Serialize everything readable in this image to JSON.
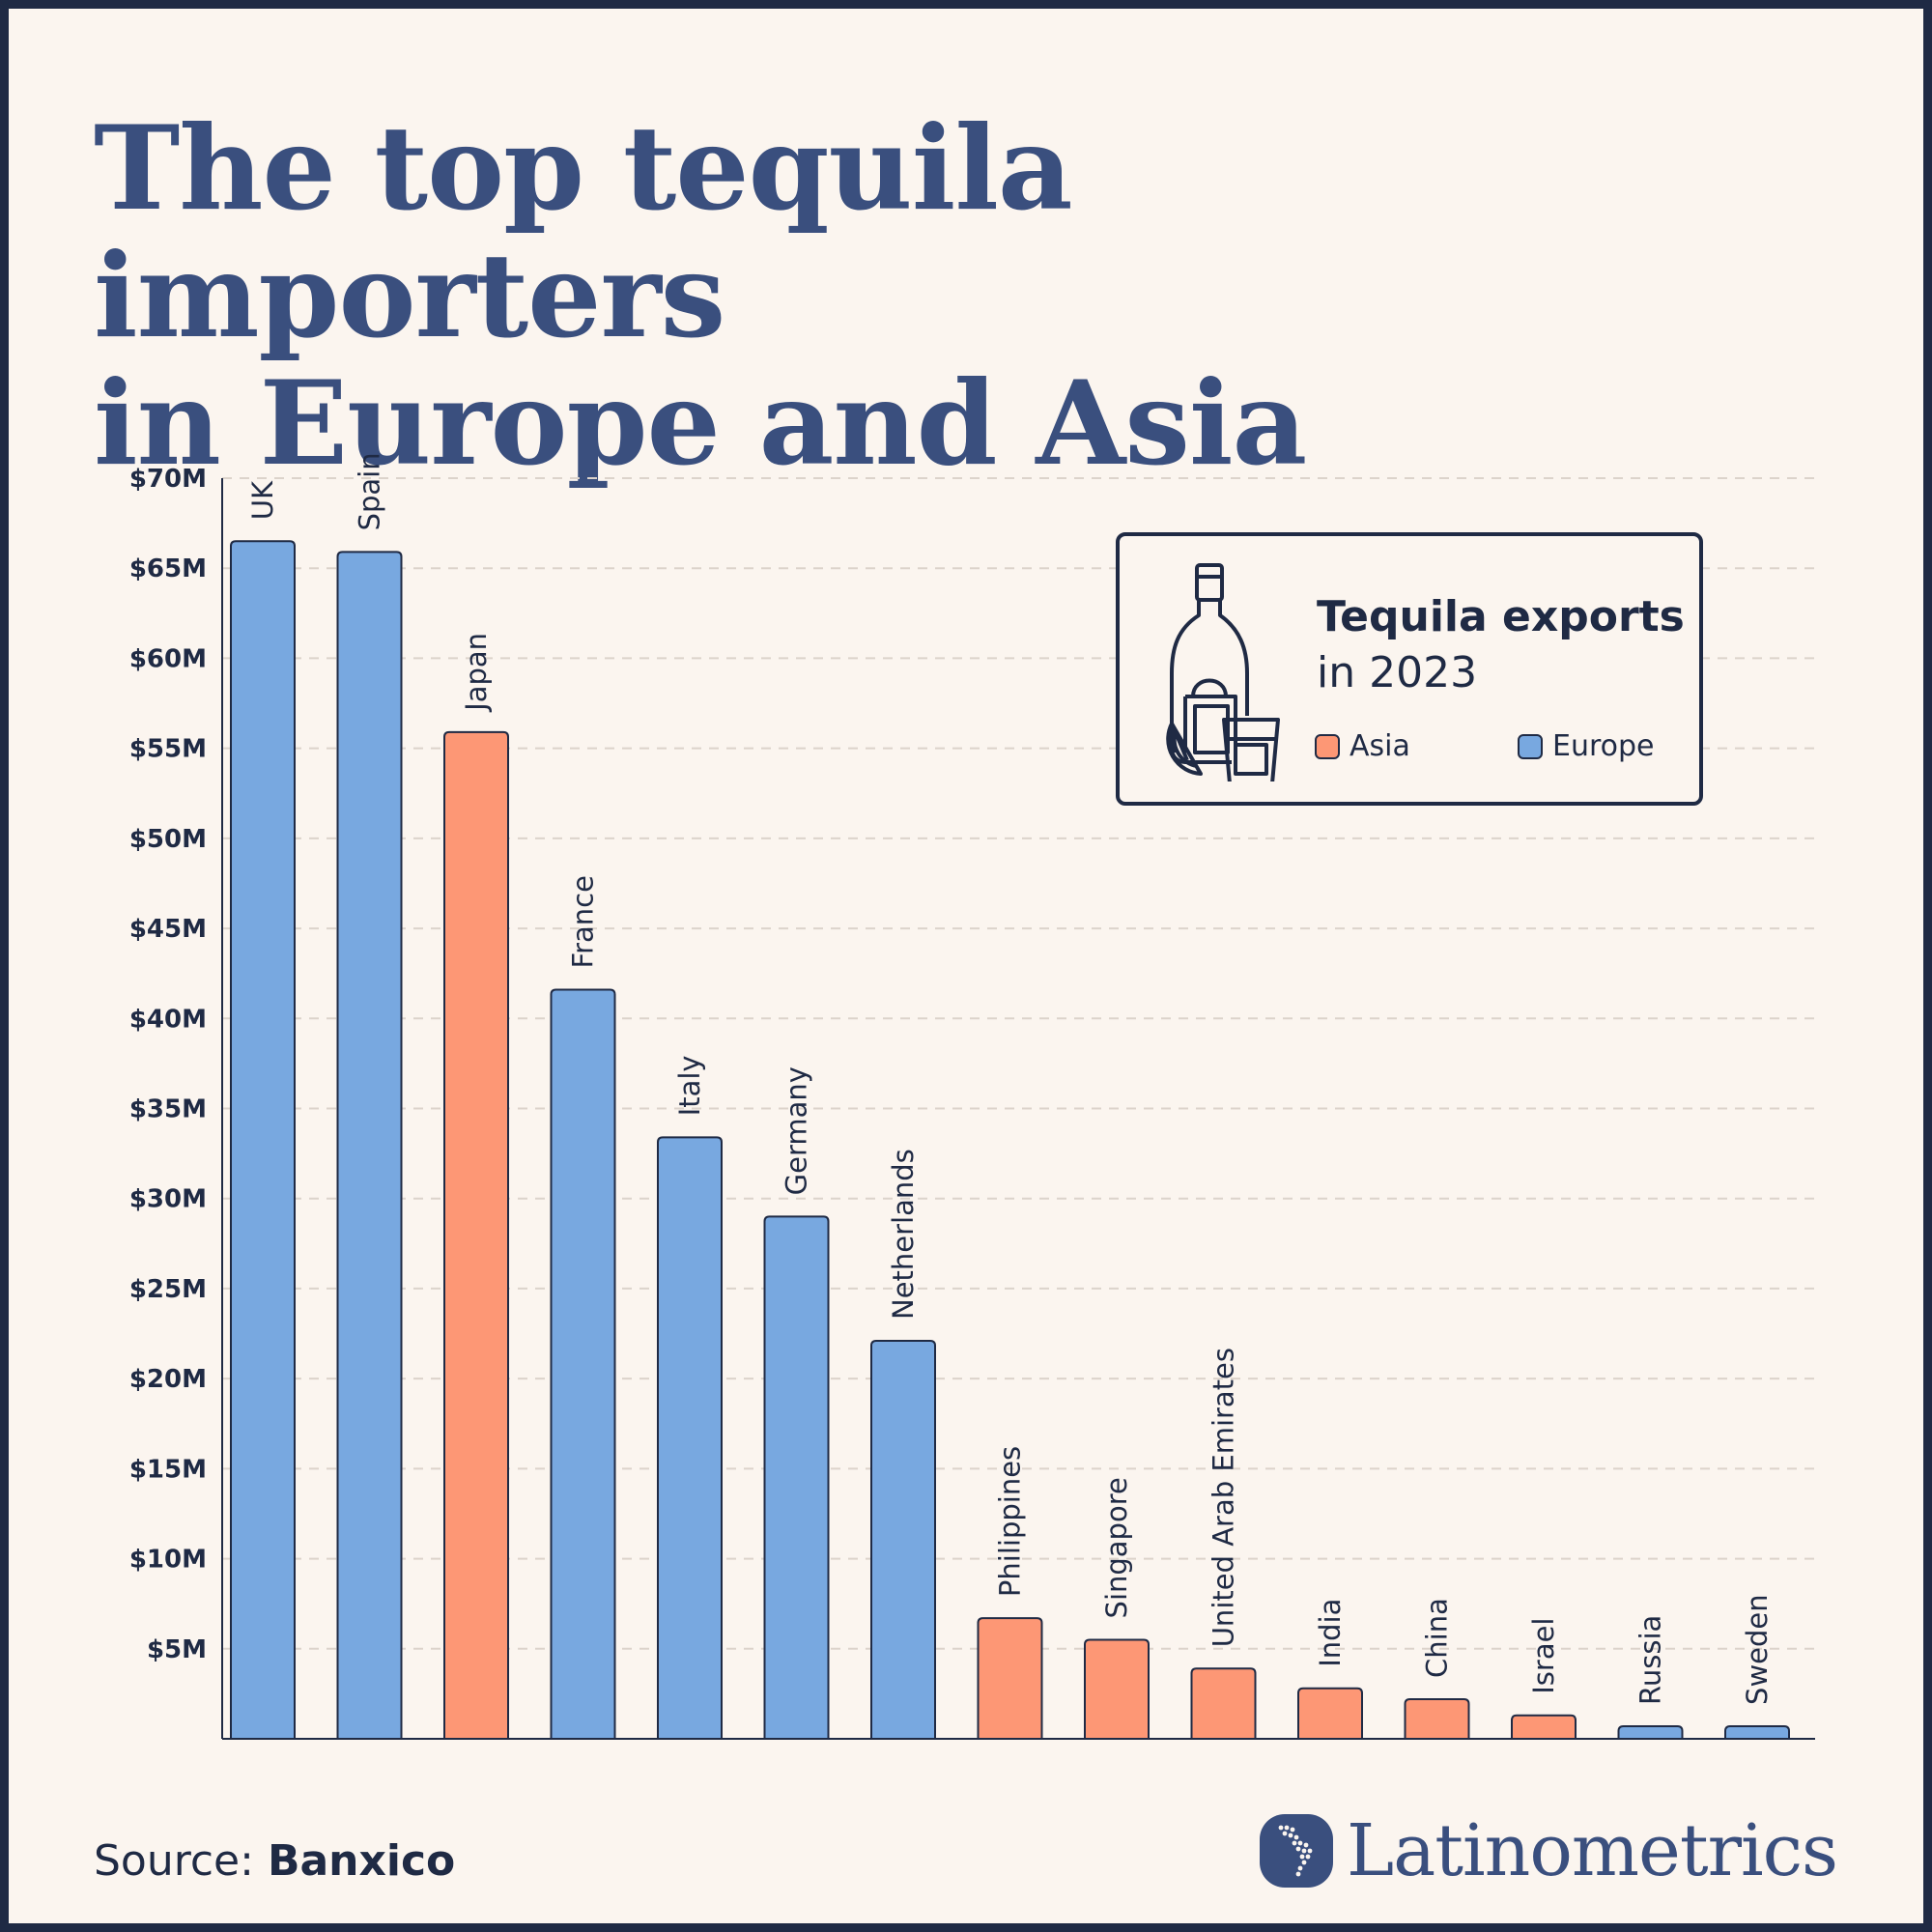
{
  "title": {
    "line1": "The top tequila importers",
    "line2": "in Europe and Asia"
  },
  "legend": {
    "title": "Tequila exports",
    "subtitle": "in 2023",
    "icon": "tequila-bottle-glass-lime-icon",
    "items": [
      {
        "label": "Asia",
        "color": "#fd9775"
      },
      {
        "label": "Europe",
        "color": "#78a8e0"
      }
    ]
  },
  "source": {
    "prefix": "Source:",
    "name": "Banxico"
  },
  "brand": {
    "name": "Latinometrics",
    "icon": "latin-america-map-logo-icon"
  },
  "colors": {
    "europe": "#78a8e0",
    "asia": "#fd9775",
    "outline": "#1f2a44",
    "title": "#3a4f7e",
    "background": "#fbf5ef"
  },
  "chart_data": {
    "type": "bar",
    "categories": [
      "UK",
      "Spain",
      "Japan",
      "France",
      "Italy",
      "Germany",
      "Netherlands",
      "Philippines",
      "Singapore",
      "United Arab Emirates",
      "India",
      "China",
      "Israel",
      "Russia",
      "Sweden"
    ],
    "values": [
      66.5,
      65.9,
      55.9,
      41.6,
      33.4,
      29.0,
      22.1,
      6.7,
      5.5,
      3.9,
      2.8,
      2.2,
      1.3,
      0.7,
      0.7
    ],
    "regions": [
      "Europe",
      "Europe",
      "Asia",
      "Europe",
      "Europe",
      "Europe",
      "Europe",
      "Asia",
      "Asia",
      "Asia",
      "Asia",
      "Asia",
      "Asia",
      "Europe",
      "Europe"
    ],
    "unit": "USD millions",
    "yticks": [
      {
        "value": 5,
        "label": "$5M"
      },
      {
        "value": 10,
        "label": "$10M"
      },
      {
        "value": 15,
        "label": "$15M"
      },
      {
        "value": 20,
        "label": "$20M"
      },
      {
        "value": 25,
        "label": "$25M"
      },
      {
        "value": 30,
        "label": "$30M"
      },
      {
        "value": 35,
        "label": "$35M"
      },
      {
        "value": 40,
        "label": "$40M"
      },
      {
        "value": 45,
        "label": "$45M"
      },
      {
        "value": 50,
        "label": "$50M"
      },
      {
        "value": 55,
        "label": "$55M"
      },
      {
        "value": 60,
        "label": "$60M"
      },
      {
        "value": 65,
        "label": "$65M"
      },
      {
        "value": 70,
        "label": "$70M"
      }
    ],
    "ylim": [
      0,
      70
    ],
    "grid": true,
    "legend_position": "top-right"
  }
}
